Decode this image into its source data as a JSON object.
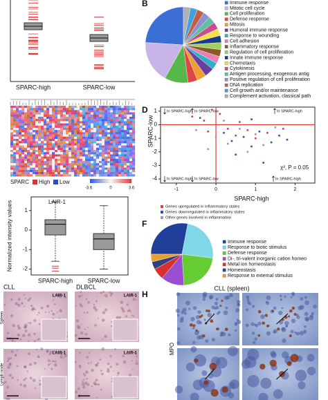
{
  "chart_data": [
    {
      "type": "pie",
      "labels": [
        "Immune response",
        "Mitotic cell cycle",
        "Cell proliferation",
        "Defense response",
        "Mitosis",
        "Humoral immune response",
        "Response to wounding",
        "Cell adhesion",
        "Inflammatory response",
        "Regulation of cell proliferation",
        "Innate immune response",
        "Chemotaxis",
        "Cytokinesis",
        "Antigen processing, exogenous antig",
        "Positive regulation of cell proliferation",
        "DNA replication",
        "Cell growth and/or maintenance",
        "Complement activation, classical path"
      ],
      "values": [
        24,
        18,
        10,
        4,
        4,
        4,
        3,
        3,
        3,
        3,
        3,
        3,
        3,
        3,
        3,
        3,
        3,
        3
      ],
      "colors": [
        "#3b6fd6",
        "#c8b4e6",
        "#56b84a",
        "#e04545",
        "#f0a030",
        "#6a3fa0",
        "#2fb0c8",
        "#e87fb8",
        "#8a5a2a",
        "#a0d060",
        "#1a3a8a",
        "#f6e04a",
        "#d04a90",
        "#60c0a0",
        "#9090d0",
        "#c06040",
        "#40a0e0",
        "#b0b0b0"
      ]
    },
    {
      "type": "scatter",
      "xlabel": "SPARC-high",
      "ylabel": "SPARC-low",
      "xlim": [
        -1.4,
        2.5
      ],
      "ylim": [
        -4.3,
        1.3
      ],
      "xticks": [
        -1,
        0,
        1,
        2
      ],
      "yticks": [
        1,
        0,
        -1,
        -2,
        -3,
        -4
      ],
      "annotations": [
        "In SPARC-high",
        "In SPARC-low",
        "In SPARC-high",
        "In SPARC-high",
        "In SPARC-low",
        "In SPARC-high"
      ],
      "stat": "χ², P = 0.05",
      "series": [
        {
          "name": "Genes upregulated in inflammatory states",
          "color": "#e03a3a",
          "x": [
            -0.6,
            -0.3,
            -0.2,
            0.1,
            0.3,
            0.5,
            0.8,
            1.0,
            1.3,
            -0.1,
            0.6,
            1.7
          ],
          "y": [
            0.6,
            0.3,
            -0.5,
            0.8,
            -0.3,
            -0.8,
            -0.4,
            -1.0,
            -0.6,
            1.1,
            0.2,
            -0.3
          ]
        },
        {
          "name": "Genes downregulated in inflammatory states",
          "color": "#2a4fc0",
          "x": [
            0.2,
            0.4,
            0.7,
            0.9,
            1.1,
            1.4,
            1.6,
            0.5,
            1.2,
            -0.4,
            0.9,
            1.8
          ],
          "y": [
            -0.6,
            -1.2,
            -0.9,
            -1.6,
            -0.5,
            -1.3,
            -0.8,
            -2.2,
            -2.8,
            0.5,
            0.4,
            -1.1
          ]
        },
        {
          "name": "Other genes involved in inflammation",
          "color": "#9a9a9a",
          "x": [
            -0.5,
            0.0,
            0.3,
            0.6,
            0.8,
            1.0,
            1.5,
            0.2,
            -0.2,
            1.2
          ],
          "y": [
            -0.4,
            -0.9,
            -1.4,
            -0.3,
            -2.0,
            -0.7,
            -0.2,
            0.3,
            -1.8,
            -1.5
          ]
        }
      ]
    },
    {
      "type": "box",
      "title": "LAIR-1",
      "ylabel": "Normalized intensity values",
      "categories": [
        "SPARC-high",
        "SPARC-low"
      ],
      "ylim": [
        -2.3,
        1.7
      ],
      "yticks": [
        1,
        0,
        -1,
        -2
      ],
      "boxes": [
        {
          "low": -1.6,
          "q1": -0.25,
          "median": 0.3,
          "q3": 0.53,
          "high": 1.45,
          "outliers": [
            -1.85,
            -1.95,
            -2.1
          ]
        },
        {
          "low": -2.0,
          "q1": -1.0,
          "median": -0.45,
          "q3": -0.18,
          "high": 1.25,
          "outliers": []
        }
      ]
    },
    {
      "type": "pie",
      "labels": [
        "Immune response",
        "Response to biotic stimulus",
        "Defense response",
        "Di-, tri-valent inorganic cation homeo",
        "Metal ion homeostasis",
        "Homeostasis",
        "Response to external stimulus"
      ],
      "values": [
        28,
        24,
        22,
        12,
        6,
        4,
        4
      ],
      "colors": [
        "#1f3f9a",
        "#7fd8e8",
        "#66cc33",
        "#9b4fd0",
        "#d83030",
        "#304080",
        "#e8a030"
      ]
    }
  ],
  "panels": {
    "a": {
      "categories": [
        "SPARC-high",
        "SPARC-low"
      ]
    },
    "heatmap": {
      "legend_title": "SPARC",
      "high": "High",
      "low": "Low",
      "scale": [
        "-3.6",
        "0",
        "3.6"
      ]
    },
    "labels": {
      "b": "B",
      "d": "D",
      "f": "F",
      "h": "H"
    },
    "g": {
      "cll": "CLL",
      "dlbcl": "DLBCL",
      "stain": "LAIR-1",
      "spleen": "Spleen",
      "node": "Lymph node"
    },
    "h": {
      "title": "CLL (spleen)",
      "stain": "MPO"
    }
  }
}
